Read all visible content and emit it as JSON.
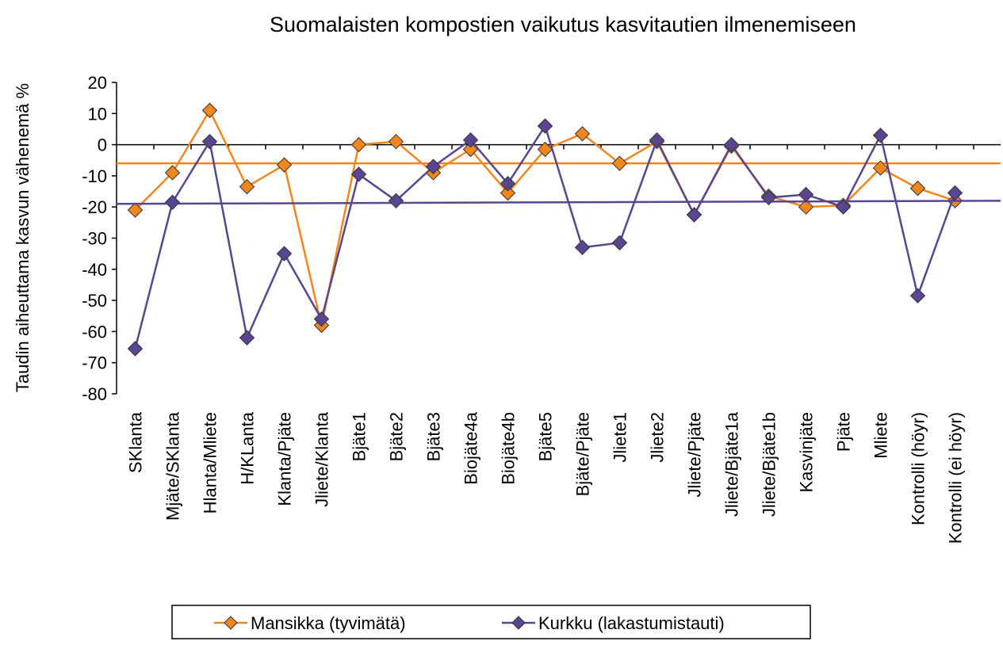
{
  "chart_data": {
    "type": "line",
    "title": "Suomalaisten kompostien vaikutus kasvitautien ilmenemiseen",
    "y_label": "Taudin aiheuttama kasvun vähenemä %",
    "categories": [
      "SKlanta",
      "Mjäte/SKlanta",
      "Hlanta/Mliete",
      "H/KLanta",
      "Klanta/Pjäte",
      "Jliete/Klanta",
      "Bjäte1",
      "Bjäte2",
      "Bjäte3",
      "Biojäte4a",
      "Biojäte4b",
      "Bjäte5",
      "Bjäte/Pjäte",
      "Jliete1",
      "Jliete2",
      "Jliete/Pjäte",
      "Jliete/Bjäte1a",
      "Jliete/Bjäte1b",
      "Kasvinjäte",
      "Pjäte",
      "Mliete",
      "Kontrolli (höyr)",
      "Kontrolli (ei höyr)"
    ],
    "series": [
      {
        "name": "Mansikka (tyvimätä)",
        "color": "#f0861e",
        "values": [
          -21,
          -9,
          11,
          -13.5,
          -6.5,
          -58,
          0,
          1,
          -9,
          -1.5,
          -15.5,
          -1.5,
          3.5,
          -6,
          1,
          -22.5,
          -0.5,
          -16.5,
          -20,
          -19.5,
          -7.5,
          -14,
          -18
        ],
        "trend": [
          -6,
          -6
        ]
      },
      {
        "name": "Kurkku (lakastumistauti)",
        "color": "#5a4590",
        "values": [
          -65.5,
          -18.5,
          1,
          -62,
          -35,
          -56,
          -9.5,
          -18,
          -7,
          1.5,
          -12.5,
          6,
          -33,
          -31.5,
          1.5,
          -22.5,
          0,
          -17,
          -16,
          -20,
          3,
          -48.5,
          -15.5
        ],
        "trend": [
          -19,
          -18
        ]
      }
    ],
    "ylim": [
      -80,
      20
    ],
    "yticks": [
      20,
      10,
      0,
      -10,
      -20,
      -30,
      -40,
      -50,
      -60,
      -70,
      -80
    ],
    "legend": "bottom"
  }
}
